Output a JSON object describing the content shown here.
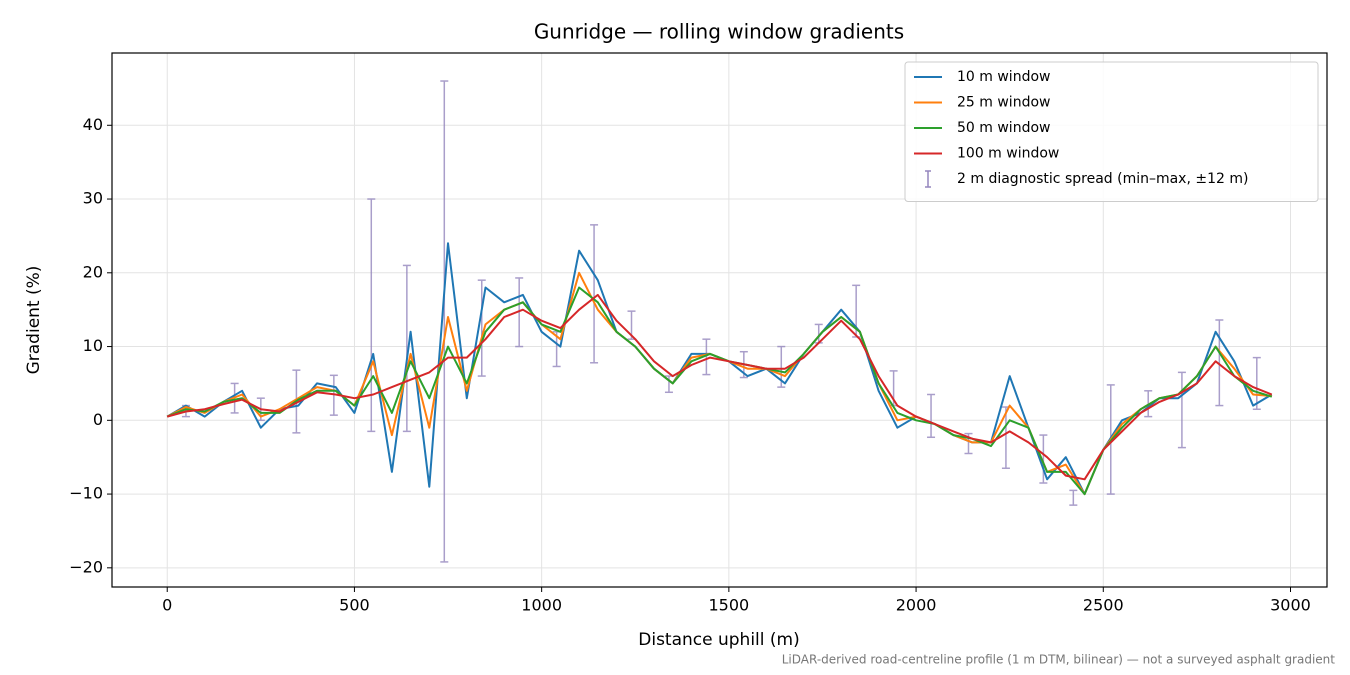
{
  "chart_data": {
    "type": "line",
    "title": "Gunridge — rolling window gradients",
    "xlabel": "Distance uphill (m)",
    "ylabel": "Gradient (%)",
    "footnote": "LiDAR-derived road-centreline profile (1 m DTM, bilinear) — not a surveyed asphalt gradient",
    "x": [
      0,
      50,
      100,
      150,
      200,
      250,
      300,
      350,
      400,
      450,
      500,
      550,
      600,
      650,
      700,
      750,
      800,
      850,
      900,
      950,
      1000,
      1050,
      1100,
      1150,
      1200,
      1250,
      1300,
      1350,
      1400,
      1450,
      1500,
      1550,
      1600,
      1650,
      1700,
      1750,
      1800,
      1850,
      1900,
      1950,
      2000,
      2050,
      2100,
      2150,
      2200,
      2250,
      2300,
      2350,
      2400,
      2450,
      2500,
      2550,
      2600,
      2650,
      2700,
      2750,
      2800,
      2850,
      2900,
      2950
    ],
    "series": [
      {
        "name": "10 m window",
        "color": "#1f77b4",
        "values": [
          0.5,
          2,
          0.5,
          2.5,
          4,
          -1,
          1.5,
          2,
          5,
          4.5,
          1,
          9,
          -7,
          12,
          -9,
          24,
          3,
          18,
          16,
          17,
          12,
          10,
          23,
          19,
          12,
          10,
          7,
          5,
          9,
          9,
          8,
          6,
          7,
          5,
          9,
          12,
          15,
          12,
          4,
          -1,
          0.5,
          -0.5,
          -2,
          -3,
          -3,
          6,
          -1,
          -8,
          -5,
          -10,
          -4,
          0,
          1,
          3,
          3,
          5,
          12,
          8,
          2,
          3.5
        ]
      },
      {
        "name": "25 m window",
        "color": "#ff7f0e",
        "values": [
          0.5,
          1.8,
          1,
          2.5,
          3.5,
          0.5,
          1.5,
          3,
          4.5,
          4,
          2,
          8,
          -2,
          9,
          -1,
          14,
          4,
          13,
          15,
          16,
          13,
          11,
          20,
          15,
          12,
          10,
          7,
          5,
          8.5,
          9,
          8,
          7,
          7,
          6,
          9,
          12,
          14,
          12,
          5,
          0,
          0.5,
          -0.5,
          -2,
          -3,
          -3,
          2,
          -1,
          -7,
          -6,
          -10,
          -4,
          -0.5,
          1.5,
          3,
          3.5,
          6,
          10,
          7,
          3.5,
          3.3
        ]
      },
      {
        "name": "50 m window",
        "color": "#2ca02c",
        "values": [
          0.5,
          1.5,
          1.2,
          2.5,
          3,
          1,
          1,
          2.8,
          4,
          4,
          2,
          6,
          1,
          8,
          3,
          10,
          5,
          12,
          15,
          16,
          13,
          12,
          18,
          16,
          12,
          10,
          7,
          5,
          8,
          9,
          8,
          7.5,
          7,
          6.5,
          9,
          12,
          14,
          12,
          5,
          1,
          0,
          -0.5,
          -2,
          -2.5,
          -3.5,
          0,
          -1,
          -7,
          -7,
          -10,
          -4,
          -1,
          1.5,
          3,
          3.5,
          6,
          10,
          6,
          4,
          3.2
        ]
      },
      {
        "name": "100 m window",
        "color": "#d62728",
        "values": [
          0.5,
          1.2,
          1.5,
          2.2,
          2.8,
          1.5,
          1.2,
          2.5,
          3.8,
          3.5,
          3,
          3.5,
          4.5,
          5.5,
          6.5,
          8.5,
          8.5,
          11,
          14,
          15,
          13.5,
          12.5,
          15,
          17,
          13.5,
          11,
          8,
          6,
          7.5,
          8.5,
          8,
          7.5,
          7,
          7,
          8.5,
          11,
          13.5,
          11,
          6,
          2,
          0.5,
          -0.5,
          -1.5,
          -2.5,
          -3,
          -1.5,
          -3,
          -5,
          -7.5,
          -8,
          -4,
          -1.5,
          1,
          2.5,
          3.5,
          5,
          8,
          6,
          4.5,
          3.5
        ]
      }
    ],
    "errorbars": {
      "name": "2 m diagnostic spread (min–max, ±12 m)",
      "color": "#9486bd",
      "x": [
        50,
        180,
        250,
        345,
        445,
        545,
        640,
        740,
        840,
        940,
        1040,
        1140,
        1240,
        1340,
        1440,
        1540,
        1640,
        1740,
        1840,
        1940,
        2040,
        2140,
        2240,
        2340,
        2420,
        2520,
        2620,
        2710,
        2810,
        2910
      ],
      "low": [
        0.5,
        1,
        0,
        -1.7,
        0.7,
        -1.5,
        -1.5,
        -19.2,
        6,
        10,
        7.3,
        7.8,
        11,
        3.8,
        6.2,
        5.8,
        4.5,
        10.5,
        11.3,
        2,
        -2.3,
        -4.5,
        -6.5,
        -8.5,
        -11.5,
        -10,
        0.5,
        -3.7,
        2,
        1.5
      ],
      "high": [
        2,
        5,
        3,
        6.8,
        6.1,
        30,
        21,
        46,
        19,
        19.3,
        12,
        26.5,
        14.8,
        6,
        11,
        9.3,
        10,
        13,
        18.3,
        6.7,
        3.5,
        -1.8,
        1.8,
        -2,
        -9.5,
        4.8,
        4,
        6.5,
        13.6,
        8.5
      ]
    },
    "xlim": [
      -147.5,
      3097.5
    ],
    "ylim": [
      -22.6,
      49.8
    ],
    "xticks": [
      0,
      500,
      1000,
      1500,
      2000,
      2500,
      3000
    ],
    "yticks": [
      {
        "value": -20,
        "label": "−20"
      },
      {
        "value": -10,
        "label": "−10"
      },
      0,
      10,
      20,
      30,
      40
    ],
    "grid": true,
    "legend": "upper right"
  }
}
